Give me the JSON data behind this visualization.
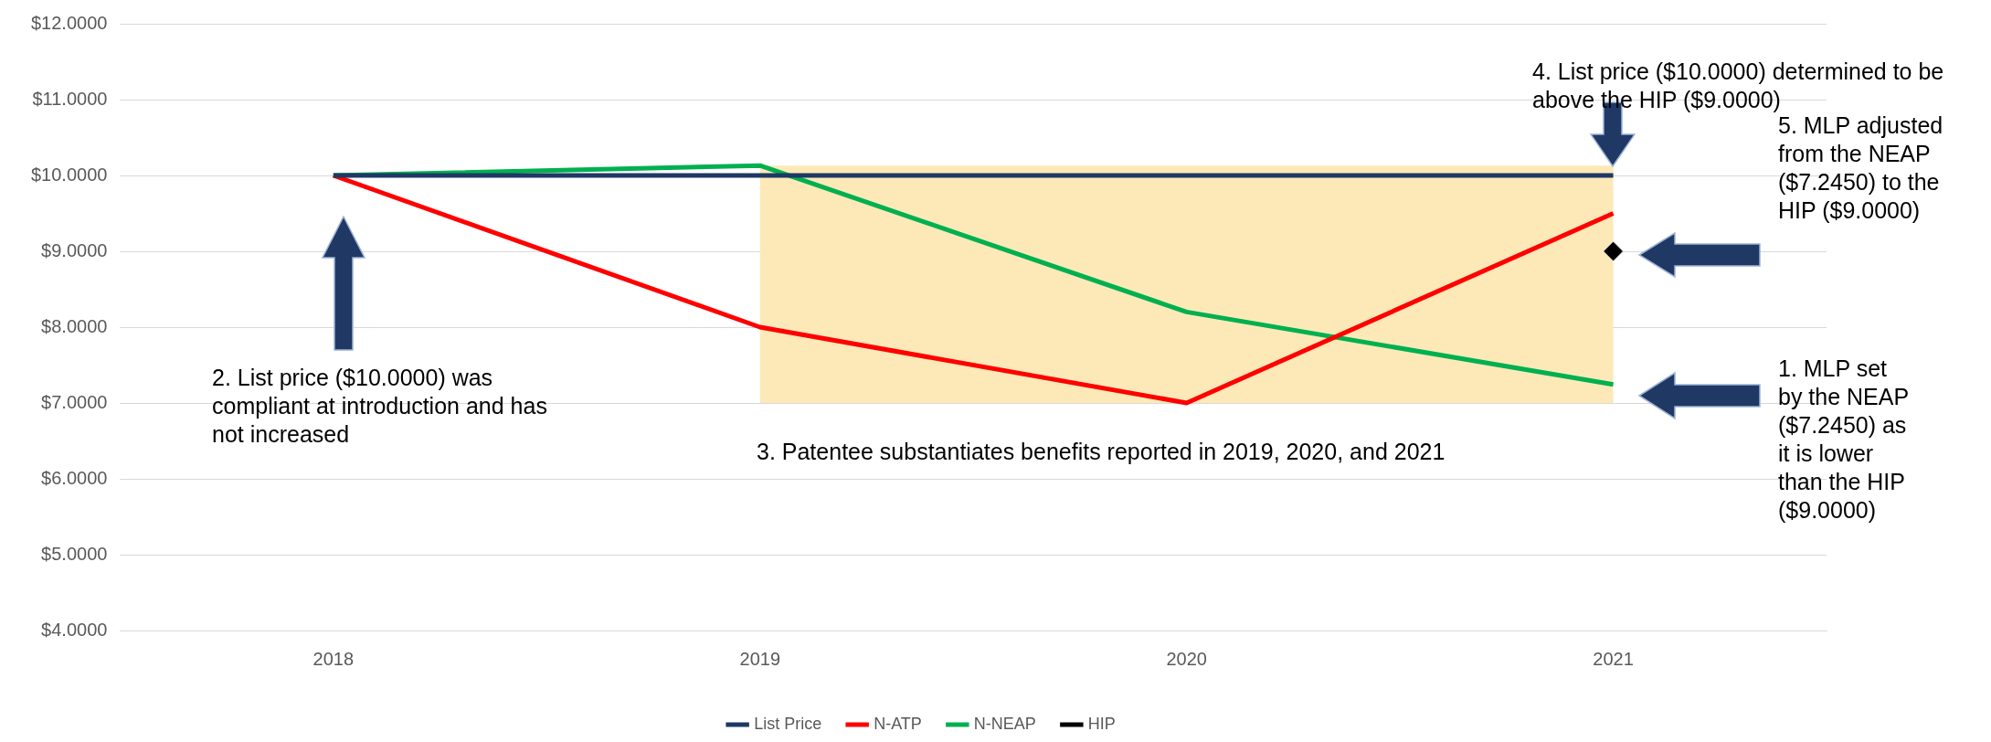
{
  "chart_data": {
    "type": "line",
    "categories": [
      "2018",
      "2019",
      "2020",
      "2021"
    ],
    "series": [
      {
        "name": "List Price",
        "color": "#1f3864",
        "values": [
          10,
          10,
          10,
          10
        ]
      },
      {
        "name": "N-ATP",
        "color": "#ff0000",
        "values": [
          10,
          8,
          7,
          9.5
        ]
      },
      {
        "name": "N-NEAP",
        "color": "#00b050",
        "values": [
          10,
          10.13,
          8.2,
          7.245
        ]
      },
      {
        "name": "HIP",
        "color": "#000000",
        "type": "scatter",
        "marker": "diamond",
        "values": [
          null,
          null,
          null,
          9
        ]
      }
    ],
    "ylim": [
      4,
      12
    ],
    "yticks": [
      {
        "value": 4,
        "label": "$4.0000"
      },
      {
        "value": 5,
        "label": "$5.0000"
      },
      {
        "value": 6,
        "label": "$6.0000"
      },
      {
        "value": 7,
        "label": "$7.0000"
      },
      {
        "value": 8,
        "label": "$8.0000"
      },
      {
        "value": 9,
        "label": "$9.0000"
      },
      {
        "value": 10,
        "label": "$10.0000"
      },
      {
        "value": 11,
        "label": "$11.0000"
      },
      {
        "value": 12,
        "label": "$12.0000"
      }
    ],
    "bands": [
      {
        "axis": "x",
        "from": "2019",
        "to": "2021",
        "color": "#fde9b8"
      }
    ],
    "annotations": [
      "1. MLP set by the NEAP ($7.2450) as it is lower than the HIP ($9.0000)",
      "2. List price ($10.0000) was compliant at introduction and has not increased",
      "3. Patentee substantiates benefits reported in 2019, 2020, and 2021",
      "4. List price ($10.0000) determined to be above the HIP ($9.0000)",
      "5. MLP adjusted from the NEAP ($7.2450) to the HIP ($9.0000)"
    ],
    "grid": "y",
    "legend": "bottom",
    "marker": "none",
    "line_style": "solid"
  }
}
